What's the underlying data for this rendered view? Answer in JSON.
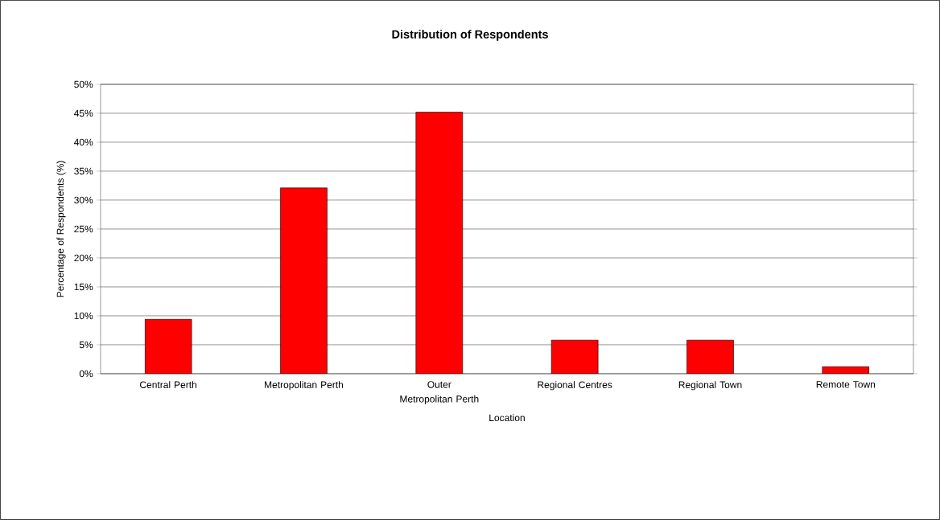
{
  "chart_data": {
    "type": "bar",
    "title": "Distribution of Respondents",
    "xlabel": "Location",
    "ylabel": "Percentage of Respondents (%)",
    "categories": [
      "Central Perth",
      "Metropolitan Perth",
      "Outer Metropolitan Perth",
      "Regional Centres",
      "Regional Town",
      "Remote Town"
    ],
    "values": [
      9.4,
      32.1,
      45.2,
      5.8,
      5.8,
      1.2
    ],
    "color": "#ff0000",
    "ylim": [
      0,
      50
    ],
    "yticks": [
      {
        "value": 0,
        "label": "0%"
      },
      {
        "value": 5,
        "label": "5%"
      },
      {
        "value": 10,
        "label": "10%"
      },
      {
        "value": 15,
        "label": "15%"
      },
      {
        "value": 20,
        "label": "20%"
      },
      {
        "value": 25,
        "label": "25%"
      },
      {
        "value": 30,
        "label": "30%"
      },
      {
        "value": 35,
        "label": "35%"
      },
      {
        "value": 40,
        "label": "40%"
      },
      {
        "value": 45,
        "label": "45%"
      },
      {
        "value": 50,
        "label": "50%"
      }
    ],
    "grid": "y"
  }
}
